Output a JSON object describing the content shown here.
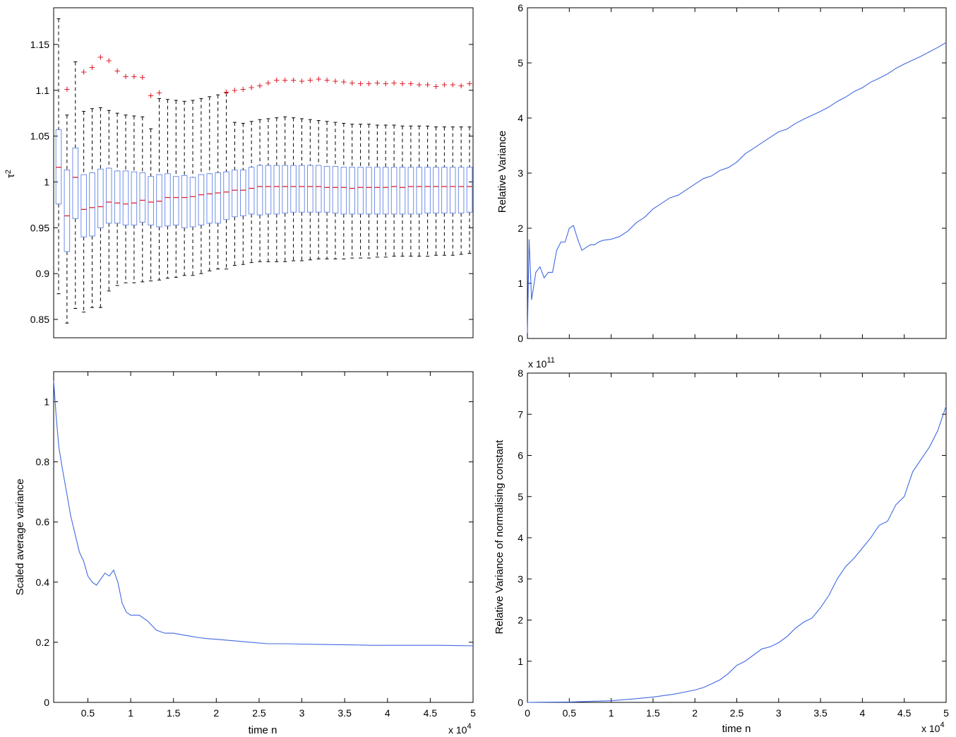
{
  "chart_data": [
    {
      "type": "box",
      "ylabel_main": "τ",
      "ylabel_sup": "2",
      "xlabel": "",
      "ylim": [
        0.83,
        1.19
      ],
      "xlim": [
        1000,
        50000
      ],
      "yticks": [
        0.85,
        0.9,
        0.95,
        1.0,
        1.05,
        1.1,
        1.15
      ],
      "ytick_labels": [
        "0.85",
        "0.9",
        "0.95",
        "1",
        "1.05",
        "1.1",
        "1.15"
      ],
      "x_shown": false,
      "colors": {
        "box": "#6f8fe8",
        "median": "#e0202b",
        "outlier": "#e0202b",
        "whisker": "#000000"
      },
      "positions": [
        1000,
        2000,
        3000,
        4000,
        5000,
        6000,
        7000,
        8000,
        9000,
        10000,
        11000,
        12000,
        13000,
        14000,
        15000,
        16000,
        17000,
        18000,
        19000,
        20000,
        21000,
        22000,
        23000,
        24000,
        25000,
        26000,
        27000,
        28000,
        29000,
        30000,
        31000,
        32000,
        33000,
        34000,
        35000,
        36000,
        37000,
        38000,
        39000,
        40000,
        41000,
        42000,
        43000,
        44000,
        45000,
        46000,
        47000,
        48000,
        49000,
        50000
      ],
      "median": [
        1.016,
        0.963,
        1.005,
        0.97,
        0.972,
        0.973,
        0.978,
        0.977,
        0.976,
        0.977,
        0.98,
        0.978,
        0.979,
        0.983,
        0.983,
        0.983,
        0.984,
        0.986,
        0.987,
        0.988,
        0.989,
        0.991,
        0.991,
        0.993,
        0.995,
        0.995,
        0.995,
        0.995,
        0.995,
        0.995,
        0.995,
        0.995,
        0.994,
        0.994,
        0.994,
        0.993,
        0.994,
        0.994,
        0.994,
        0.994,
        0.995,
        0.994,
        0.995,
        0.995,
        0.995,
        0.995,
        0.995,
        0.995,
        0.995,
        0.995
      ],
      "q1": [
        0.976,
        0.924,
        0.96,
        0.94,
        0.941,
        0.95,
        0.955,
        0.955,
        0.953,
        0.953,
        0.956,
        0.953,
        0.951,
        0.952,
        0.953,
        0.95,
        0.951,
        0.953,
        0.955,
        0.955,
        0.959,
        0.962,
        0.963,
        0.965,
        0.964,
        0.965,
        0.965,
        0.966,
        0.967,
        0.967,
        0.967,
        0.967,
        0.967,
        0.966,
        0.965,
        0.965,
        0.965,
        0.965,
        0.965,
        0.965,
        0.965,
        0.965,
        0.965,
        0.965,
        0.966,
        0.966,
        0.966,
        0.966,
        0.966,
        0.967
      ],
      "q3": [
        1.057,
        1.013,
        1.037,
        1.008,
        1.01,
        1.014,
        1.015,
        1.012,
        1.012,
        1.011,
        1.01,
        1.006,
        1.008,
        1.009,
        1.006,
        1.007,
        1.005,
        1.008,
        1.009,
        1.01,
        1.011,
        1.013,
        1.013,
        1.016,
        1.018,
        1.018,
        1.018,
        1.018,
        1.018,
        1.018,
        1.018,
        1.018,
        1.017,
        1.017,
        1.016,
        1.016,
        1.016,
        1.016,
        1.016,
        1.016,
        1.016,
        1.016,
        1.016,
        1.016,
        1.016,
        1.016,
        1.016,
        1.016,
        1.016,
        1.016
      ],
      "whislo": [
        0.878,
        0.846,
        0.862,
        0.858,
        0.863,
        0.863,
        0.881,
        0.887,
        0.89,
        0.89,
        0.891,
        0.892,
        0.893,
        0.895,
        0.896,
        0.898,
        0.898,
        0.9,
        0.903,
        0.905,
        0.905,
        0.909,
        0.91,
        0.912,
        0.913,
        0.913,
        0.913,
        0.913,
        0.914,
        0.914,
        0.915,
        0.916,
        0.916,
        0.916,
        0.916,
        0.917,
        0.917,
        0.917,
        0.918,
        0.918,
        0.919,
        0.919,
        0.919,
        0.919,
        0.919,
        0.92,
        0.92,
        0.92,
        0.921,
        0.922
      ],
      "whishi": [
        1.178,
        1.073,
        1.131,
        1.077,
        1.08,
        1.081,
        1.078,
        1.075,
        1.073,
        1.072,
        1.071,
        1.058,
        1.091,
        1.09,
        1.089,
        1.088,
        1.089,
        1.091,
        1.093,
        1.095,
        1.097,
        1.065,
        1.064,
        1.066,
        1.068,
        1.069,
        1.07,
        1.071,
        1.07,
        1.069,
        1.068,
        1.067,
        1.066,
        1.065,
        1.064,
        1.063,
        1.063,
        1.063,
        1.062,
        1.062,
        1.062,
        1.061,
        1.061,
        1.061,
        1.061,
        1.06,
        1.06,
        1.06,
        1.06,
        1.06
      ],
      "outliers": [
        [
          2000,
          1.101
        ],
        [
          4000,
          1.12
        ],
        [
          5000,
          1.125
        ],
        [
          6000,
          1.136
        ],
        [
          7000,
          1.132
        ],
        [
          8000,
          1.121
        ],
        [
          9000,
          1.115
        ],
        [
          10000,
          1.115
        ],
        [
          11000,
          1.114
        ],
        [
          12000,
          1.094
        ],
        [
          13000,
          1.097
        ],
        [
          21000,
          1.098
        ],
        [
          22000,
          1.1
        ],
        [
          23000,
          1.101
        ],
        [
          24000,
          1.103
        ],
        [
          25000,
          1.105
        ],
        [
          26000,
          1.108
        ],
        [
          27000,
          1.111
        ],
        [
          28000,
          1.111
        ],
        [
          29000,
          1.111
        ],
        [
          30000,
          1.11
        ],
        [
          31000,
          1.111
        ],
        [
          32000,
          1.112
        ],
        [
          33000,
          1.111
        ],
        [
          34000,
          1.11
        ],
        [
          35000,
          1.109
        ],
        [
          36000,
          1.108
        ],
        [
          37000,
          1.107
        ],
        [
          38000,
          1.107
        ],
        [
          39000,
          1.108
        ],
        [
          40000,
          1.107
        ],
        [
          41000,
          1.108
        ],
        [
          42000,
          1.107
        ],
        [
          43000,
          1.107
        ],
        [
          44000,
          1.106
        ],
        [
          45000,
          1.106
        ],
        [
          46000,
          1.104
        ],
        [
          47000,
          1.106
        ],
        [
          48000,
          1.106
        ],
        [
          49000,
          1.105
        ],
        [
          50000,
          1.107
        ]
      ]
    },
    {
      "type": "line",
      "ylabel": "Relative Variance",
      "xlabel": "",
      "xlim": [
        0,
        50000
      ],
      "ylim": [
        0,
        6
      ],
      "yticks": [
        0,
        1,
        2,
        3,
        4,
        5,
        6
      ],
      "ytick_labels": [
        "0",
        "1",
        "2",
        "3",
        "4",
        "5",
        "6"
      ],
      "xtick_values": [
        0,
        5000,
        10000,
        15000,
        20000,
        25000,
        30000,
        35000,
        40000,
        45000,
        50000
      ],
      "x_shown": false,
      "color": "#4169e1",
      "x": [
        0,
        200,
        500,
        1000,
        1500,
        2000,
        2500,
        3000,
        3500,
        4000,
        4500,
        5000,
        5500,
        6000,
        6500,
        7000,
        7500,
        8000,
        8500,
        9000,
        10000,
        11000,
        12000,
        13000,
        14000,
        15000,
        16000,
        17000,
        18000,
        19000,
        20000,
        21000,
        22000,
        23000,
        24000,
        25000,
        26000,
        27000,
        28000,
        29000,
        30000,
        31000,
        32000,
        33000,
        34000,
        35000,
        36000,
        37000,
        38000,
        39000,
        40000,
        41000,
        42000,
        43000,
        44000,
        45000,
        46000,
        47000,
        48000,
        49000,
        50000
      ],
      "y": [
        0.1,
        1.8,
        0.7,
        1.2,
        1.3,
        1.1,
        1.2,
        1.2,
        1.6,
        1.75,
        1.75,
        2.0,
        2.05,
        1.8,
        1.6,
        1.65,
        1.7,
        1.7,
        1.75,
        1.78,
        1.8,
        1.85,
        1.95,
        2.1,
        2.2,
        2.35,
        2.45,
        2.55,
        2.6,
        2.7,
        2.8,
        2.9,
        2.95,
        3.05,
        3.1,
        3.2,
        3.35,
        3.45,
        3.55,
        3.65,
        3.75,
        3.8,
        3.9,
        3.98,
        4.05,
        4.12,
        4.2,
        4.3,
        4.38,
        4.48,
        4.55,
        4.65,
        4.72,
        4.8,
        4.9,
        4.98,
        5.05,
        5.12,
        5.2,
        5.28,
        5.37
      ]
    },
    {
      "type": "line",
      "ylabel": "Scaled average variance",
      "xlabel": "time n",
      "x_multiplier": "x 10",
      "x_multiplier_exp": "4",
      "xlim": [
        1000,
        50000
      ],
      "ylim": [
        0,
        1.1
      ],
      "yticks": [
        0,
        0.2,
        0.4,
        0.6,
        0.8,
        1.0
      ],
      "ytick_labels": [
        "0",
        "0.2",
        "0.4",
        "0.6",
        "0.8",
        "1"
      ],
      "xtick_values": [
        5000,
        10000,
        15000,
        20000,
        25000,
        30000,
        35000,
        40000,
        45000,
        50000
      ],
      "xtick_labels": [
        "0.5",
        "1",
        "1.5",
        "2",
        "2.5",
        "3",
        "3.5",
        "4",
        "4.5",
        "5"
      ],
      "color": "#4169e1",
      "x": [
        1000,
        1300,
        1600,
        2000,
        2500,
        3000,
        3500,
        4000,
        4500,
        5000,
        5500,
        6000,
        6500,
        7000,
        7500,
        8000,
        8500,
        9000,
        9500,
        10000,
        11000,
        12000,
        13000,
        14000,
        15000,
        16000,
        17000,
        18000,
        19000,
        20000,
        22000,
        24000,
        26000,
        28000,
        30000,
        32000,
        34000,
        36000,
        38000,
        40000,
        42000,
        44000,
        46000,
        48000,
        50000
      ],
      "y": [
        1.07,
        0.95,
        0.85,
        0.78,
        0.7,
        0.62,
        0.56,
        0.5,
        0.47,
        0.42,
        0.4,
        0.39,
        0.41,
        0.43,
        0.42,
        0.44,
        0.4,
        0.33,
        0.3,
        0.29,
        0.29,
        0.27,
        0.24,
        0.23,
        0.23,
        0.225,
        0.22,
        0.215,
        0.212,
        0.21,
        0.205,
        0.2,
        0.195,
        0.195,
        0.194,
        0.193,
        0.192,
        0.191,
        0.19,
        0.19,
        0.19,
        0.19,
        0.19,
        0.189,
        0.188
      ]
    },
    {
      "type": "line",
      "ylabel": "Relative Variance of normalising constant",
      "xlabel": "time n",
      "y_multiplier": "x 10",
      "y_multiplier_exp": "11",
      "x_multiplier": "x 10",
      "x_multiplier_exp": "4",
      "xlim": [
        0,
        50000
      ],
      "ylim": [
        0,
        8
      ],
      "yticks": [
        0,
        1,
        2,
        3,
        4,
        5,
        6,
        7,
        8
      ],
      "ytick_labels": [
        "0",
        "1",
        "2",
        "3",
        "4",
        "5",
        "6",
        "7",
        "8"
      ],
      "xtick_values": [
        0,
        5000,
        10000,
        15000,
        20000,
        25000,
        30000,
        35000,
        40000,
        45000,
        50000
      ],
      "xtick_labels": [
        "0",
        "0.5",
        "1",
        "1.5",
        "2",
        "2.5",
        "3",
        "3.5",
        "4",
        "4.5",
        "5"
      ],
      "color": "#4169e1",
      "x": [
        0,
        5000,
        10000,
        12500,
        15000,
        17500,
        20000,
        21000,
        22000,
        23000,
        24000,
        25000,
        26000,
        27000,
        28000,
        29000,
        30000,
        31000,
        32000,
        33000,
        34000,
        35000,
        36000,
        37000,
        38000,
        39000,
        40000,
        41000,
        42000,
        43000,
        44000,
        45000,
        46000,
        47000,
        48000,
        49000,
        50000
      ],
      "y": [
        0,
        0.01,
        0.04,
        0.08,
        0.13,
        0.2,
        0.3,
        0.36,
        0.45,
        0.55,
        0.7,
        0.9,
        1.0,
        1.15,
        1.3,
        1.35,
        1.45,
        1.6,
        1.8,
        1.95,
        2.05,
        2.3,
        2.6,
        3.0,
        3.3,
        3.5,
        3.75,
        4.0,
        4.3,
        4.4,
        4.8,
        5.0,
        5.6,
        5.9,
        6.2,
        6.6,
        7.2
      ]
    }
  ]
}
